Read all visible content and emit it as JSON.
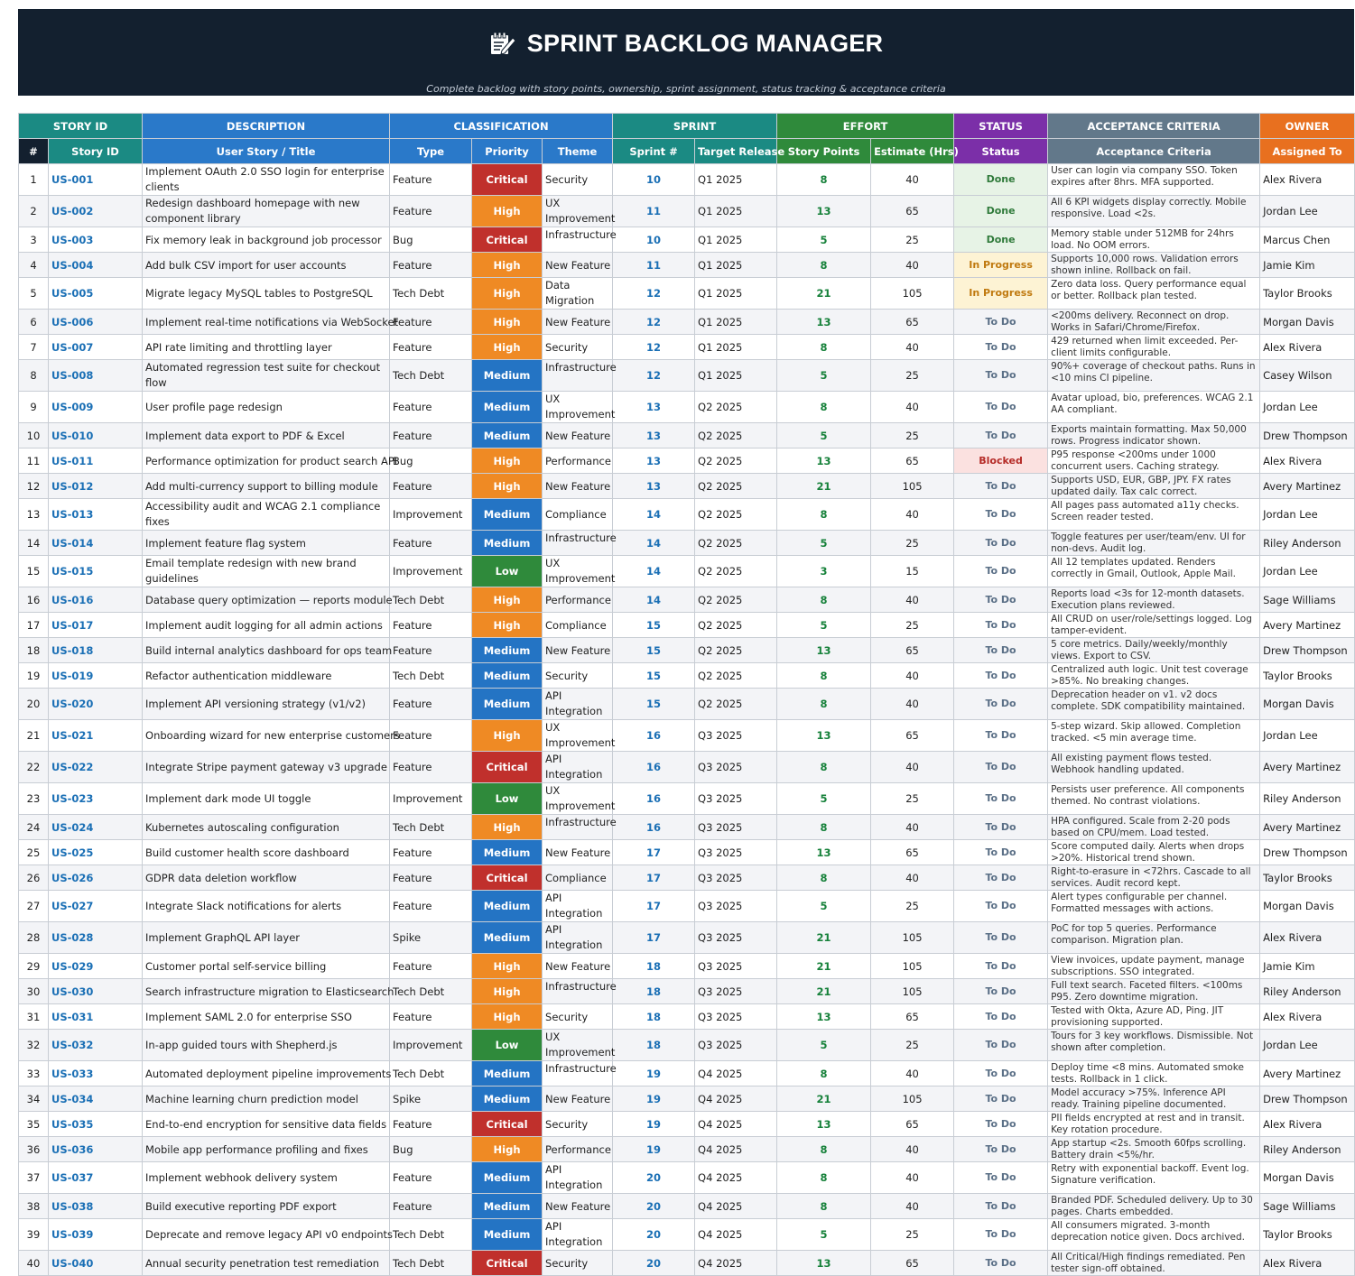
{
  "header": {
    "title": "SPRINT BACKLOG MANAGER",
    "title_icon": "memo-pencil-icon",
    "subtitle": "Complete backlog with story points, ownership, sprint assignment, status tracking & acceptance criteria"
  },
  "column_groups": [
    {
      "label": "STORY ID",
      "color": "#1b8a83"
    },
    {
      "label": "DESCRIPTION",
      "color": "#2a79c9"
    },
    {
      "label": "CLASSIFICATION",
      "color": "#2a79c9"
    },
    {
      "label": "SPRINT",
      "color": "#1b8a83"
    },
    {
      "label": "EFFORT",
      "color": "#2f8a3b"
    },
    {
      "label": "STATUS",
      "color": "#7b2fa8"
    },
    {
      "label": "ACCEPTANCE CRITERIA",
      "color": "#62788a"
    },
    {
      "label": "OWNER",
      "color": "#e8701f"
    }
  ],
  "columns": {
    "num": "#",
    "story_id": "Story ID",
    "title": "User Story / Title",
    "type": "Type",
    "priority": "Priority",
    "theme": "Theme",
    "sprint": "Sprint #",
    "release": "Target Release",
    "points": "Story Points",
    "hours": "Estimate (Hrs)",
    "status": "Status",
    "criteria": "Acceptance Criteria",
    "owner": "Assigned To"
  },
  "colors": {
    "banner": "#13202f",
    "critical": "#c0302c",
    "high": "#ef8a24",
    "medium": "#2474c4",
    "low": "#2f8a3b",
    "id_text": "#1a6fb5",
    "points_text": "#16813a"
  },
  "rows": [
    {
      "num": "1",
      "id": "US-001",
      "title": "Implement OAuth 2.0 SSO login for enterprise clients",
      "type": "Feature",
      "priority": "Critical",
      "theme": "Security",
      "sprint": "10",
      "release": "Q1 2025",
      "points": "8",
      "hours": "40",
      "status": "Done",
      "criteria": "User can login via company SSO. Token expires after 8hrs. MFA supported.",
      "owner": "Alex Rivera"
    },
    {
      "num": "2",
      "id": "US-002",
      "title": "Redesign dashboard homepage with new component library",
      "type": "Feature",
      "priority": "High",
      "theme": "UX Improvement",
      "sprint": "11",
      "release": "Q1 2025",
      "points": "13",
      "hours": "65",
      "status": "Done",
      "criteria": "All 6 KPI widgets display correctly. Mobile responsive. Load <2s.",
      "owner": "Jordan Lee"
    },
    {
      "num": "3",
      "id": "US-003",
      "title": "Fix memory leak in background job processor",
      "type": "Bug",
      "priority": "Critical",
      "theme": "Infrastructure",
      "sprint": "10",
      "release": "Q1 2025",
      "points": "5",
      "hours": "25",
      "status": "Done",
      "criteria": "Memory stable under 512MB for 24hrs load. No OOM errors.",
      "owner": "Marcus Chen"
    },
    {
      "num": "4",
      "id": "US-004",
      "title": "Add bulk CSV import for user accounts",
      "type": "Feature",
      "priority": "High",
      "theme": "New Feature",
      "sprint": "11",
      "release": "Q1 2025",
      "points": "8",
      "hours": "40",
      "status": "In Progress",
      "criteria": "Supports 10,000 rows. Validation errors shown inline. Rollback on fail.",
      "owner": "Jamie Kim"
    },
    {
      "num": "5",
      "id": "US-005",
      "title": "Migrate legacy MySQL tables to PostgreSQL",
      "type": "Tech Debt",
      "priority": "High",
      "theme": "Data Migration",
      "sprint": "12",
      "release": "Q1 2025",
      "points": "21",
      "hours": "105",
      "status": "In Progress",
      "criteria": "Zero data loss. Query performance equal or better. Rollback plan tested.",
      "owner": "Taylor Brooks"
    },
    {
      "num": "6",
      "id": "US-006",
      "title": "Implement real-time notifications via WebSocket",
      "type": "Feature",
      "priority": "High",
      "theme": "New Feature",
      "sprint": "12",
      "release": "Q1 2025",
      "points": "13",
      "hours": "65",
      "status": "To Do",
      "criteria": "<200ms delivery. Reconnect on drop. Works in Safari/Chrome/Firefox.",
      "owner": "Morgan Davis"
    },
    {
      "num": "7",
      "id": "US-007",
      "title": "API rate limiting and throttling layer",
      "type": "Feature",
      "priority": "High",
      "theme": "Security",
      "sprint": "12",
      "release": "Q1 2025",
      "points": "8",
      "hours": "40",
      "status": "To Do",
      "criteria": "429 returned when limit exceeded. Per-client limits configurable.",
      "owner": "Alex Rivera"
    },
    {
      "num": "8",
      "id": "US-008",
      "title": "Automated regression test suite for checkout flow",
      "type": "Tech Debt",
      "priority": "Medium",
      "theme": "Infrastructure",
      "sprint": "12",
      "release": "Q1 2025",
      "points": "5",
      "hours": "25",
      "status": "To Do",
      "criteria": "90%+ coverage of checkout paths. Runs in <10 mins CI pipeline.",
      "owner": "Casey Wilson"
    },
    {
      "num": "9",
      "id": "US-009",
      "title": "User profile page redesign",
      "type": "Feature",
      "priority": "Medium",
      "theme": "UX Improvement",
      "sprint": "13",
      "release": "Q2 2025",
      "points": "8",
      "hours": "40",
      "status": "To Do",
      "criteria": "Avatar upload, bio, preferences. WCAG 2.1 AA compliant.",
      "owner": "Jordan Lee"
    },
    {
      "num": "10",
      "id": "US-010",
      "title": "Implement data export to PDF & Excel",
      "type": "Feature",
      "priority": "Medium",
      "theme": "New Feature",
      "sprint": "13",
      "release": "Q2 2025",
      "points": "5",
      "hours": "25",
      "status": "To Do",
      "criteria": "Exports maintain formatting. Max 50,000 rows. Progress indicator shown.",
      "owner": "Drew Thompson"
    },
    {
      "num": "11",
      "id": "US-011",
      "title": "Performance optimization for product search API",
      "type": "Bug",
      "priority": "High",
      "theme": "Performance",
      "sprint": "13",
      "release": "Q2 2025",
      "points": "13",
      "hours": "65",
      "status": "Blocked",
      "criteria": "P95 response <200ms under 1000 concurrent users. Caching strategy.",
      "owner": "Alex Rivera"
    },
    {
      "num": "12",
      "id": "US-012",
      "title": "Add multi-currency support to billing module",
      "type": "Feature",
      "priority": "High",
      "theme": "New Feature",
      "sprint": "13",
      "release": "Q2 2025",
      "points": "21",
      "hours": "105",
      "status": "To Do",
      "criteria": "Supports USD, EUR, GBP, JPY. FX rates updated daily. Tax calc correct.",
      "owner": "Avery Martinez"
    },
    {
      "num": "13",
      "id": "US-013",
      "title": "Accessibility audit and WCAG 2.1 compliance fixes",
      "type": "Improvement",
      "priority": "Medium",
      "theme": "Compliance",
      "sprint": "14",
      "release": "Q2 2025",
      "points": "8",
      "hours": "40",
      "status": "To Do",
      "criteria": "All pages pass automated a11y checks. Screen reader tested.",
      "owner": "Jordan Lee"
    },
    {
      "num": "14",
      "id": "US-014",
      "title": "Implement feature flag system",
      "type": "Feature",
      "priority": "Medium",
      "theme": "Infrastructure",
      "sprint": "14",
      "release": "Q2 2025",
      "points": "5",
      "hours": "25",
      "status": "To Do",
      "criteria": "Toggle features per user/team/env. UI for non-devs. Audit log.",
      "owner": "Riley Anderson"
    },
    {
      "num": "15",
      "id": "US-015",
      "title": "Email template redesign with new brand guidelines",
      "type": "Improvement",
      "priority": "Low",
      "theme": "UX Improvement",
      "sprint": "14",
      "release": "Q2 2025",
      "points": "3",
      "hours": "15",
      "status": "To Do",
      "criteria": "All 12 templates updated. Renders correctly in Gmail, Outlook, Apple Mail.",
      "owner": "Jordan Lee"
    },
    {
      "num": "16",
      "id": "US-016",
      "title": "Database query optimization — reports module",
      "type": "Tech Debt",
      "priority": "High",
      "theme": "Performance",
      "sprint": "14",
      "release": "Q2 2025",
      "points": "8",
      "hours": "40",
      "status": "To Do",
      "criteria": "Reports load <3s for 12-month datasets. Execution plans reviewed.",
      "owner": "Sage Williams"
    },
    {
      "num": "17",
      "id": "US-017",
      "title": "Implement audit logging for all admin actions",
      "type": "Feature",
      "priority": "High",
      "theme": "Compliance",
      "sprint": "15",
      "release": "Q2 2025",
      "points": "5",
      "hours": "25",
      "status": "To Do",
      "criteria": "All CRUD on user/role/settings logged. Log tamper-evident.",
      "owner": "Avery Martinez"
    },
    {
      "num": "18",
      "id": "US-018",
      "title": "Build internal analytics dashboard for ops team",
      "type": "Feature",
      "priority": "Medium",
      "theme": "New Feature",
      "sprint": "15",
      "release": "Q2 2025",
      "points": "13",
      "hours": "65",
      "status": "To Do",
      "criteria": "5 core metrics. Daily/weekly/monthly views. Export to CSV.",
      "owner": "Drew Thompson"
    },
    {
      "num": "19",
      "id": "US-019",
      "title": "Refactor authentication middleware",
      "type": "Tech Debt",
      "priority": "Medium",
      "theme": "Security",
      "sprint": "15",
      "release": "Q2 2025",
      "points": "8",
      "hours": "40",
      "status": "To Do",
      "criteria": "Centralized auth logic. Unit test coverage >85%. No breaking changes.",
      "owner": "Taylor Brooks"
    },
    {
      "num": "20",
      "id": "US-020",
      "title": "Implement API versioning strategy (v1/v2)",
      "type": "Feature",
      "priority": "Medium",
      "theme": "API Integration",
      "sprint": "15",
      "release": "Q2 2025",
      "points": "8",
      "hours": "40",
      "status": "To Do",
      "criteria": "Deprecation header on v1. v2 docs complete. SDK compatibility maintained.",
      "owner": "Morgan Davis"
    },
    {
      "num": "21",
      "id": "US-021",
      "title": "Onboarding wizard for new enterprise customers",
      "type": "Feature",
      "priority": "High",
      "theme": "UX Improvement",
      "sprint": "16",
      "release": "Q3 2025",
      "points": "13",
      "hours": "65",
      "status": "To Do",
      "criteria": "5-step wizard. Skip allowed. Completion tracked. <5 min average time.",
      "owner": "Jordan Lee"
    },
    {
      "num": "22",
      "id": "US-022",
      "title": "Integrate Stripe payment gateway v3 upgrade",
      "type": "Feature",
      "priority": "Critical",
      "theme": "API Integration",
      "sprint": "16",
      "release": "Q3 2025",
      "points": "8",
      "hours": "40",
      "status": "To Do",
      "criteria": "All existing payment flows tested. Webhook handling updated.",
      "owner": "Avery Martinez"
    },
    {
      "num": "23",
      "id": "US-023",
      "title": "Implement dark mode UI toggle",
      "type": "Improvement",
      "priority": "Low",
      "theme": "UX Improvement",
      "sprint": "16",
      "release": "Q3 2025",
      "points": "5",
      "hours": "25",
      "status": "To Do",
      "criteria": "Persists user preference. All components themed. No contrast violations.",
      "owner": "Riley Anderson"
    },
    {
      "num": "24",
      "id": "US-024",
      "title": "Kubernetes autoscaling configuration",
      "type": "Tech Debt",
      "priority": "High",
      "theme": "Infrastructure",
      "sprint": "16",
      "release": "Q3 2025",
      "points": "8",
      "hours": "40",
      "status": "To Do",
      "criteria": "HPA configured. Scale from 2-20 pods based on CPU/mem. Load tested.",
      "owner": "Avery Martinez"
    },
    {
      "num": "25",
      "id": "US-025",
      "title": "Build customer health score dashboard",
      "type": "Feature",
      "priority": "Medium",
      "theme": "New Feature",
      "sprint": "17",
      "release": "Q3 2025",
      "points": "13",
      "hours": "65",
      "status": "To Do",
      "criteria": "Score computed daily. Alerts when drops >20%. Historical trend shown.",
      "owner": "Drew Thompson"
    },
    {
      "num": "26",
      "id": "US-026",
      "title": "GDPR data deletion workflow",
      "type": "Feature",
      "priority": "Critical",
      "theme": "Compliance",
      "sprint": "17",
      "release": "Q3 2025",
      "points": "8",
      "hours": "40",
      "status": "To Do",
      "criteria": "Right-to-erasure in <72hrs. Cascade to all services. Audit record kept.",
      "owner": "Taylor Brooks"
    },
    {
      "num": "27",
      "id": "US-027",
      "title": "Integrate Slack notifications for alerts",
      "type": "Feature",
      "priority": "Medium",
      "theme": "API Integration",
      "sprint": "17",
      "release": "Q3 2025",
      "points": "5",
      "hours": "25",
      "status": "To Do",
      "criteria": "Alert types configurable per channel. Formatted messages with actions.",
      "owner": "Morgan Davis"
    },
    {
      "num": "28",
      "id": "US-028",
      "title": "Implement GraphQL API layer",
      "type": "Spike",
      "priority": "Medium",
      "theme": "API Integration",
      "sprint": "17",
      "release": "Q3 2025",
      "points": "21",
      "hours": "105",
      "status": "To Do",
      "criteria": "PoC for top 5 queries. Performance comparison. Migration plan.",
      "owner": "Alex Rivera"
    },
    {
      "num": "29",
      "id": "US-029",
      "title": "Customer portal self-service billing",
      "type": "Feature",
      "priority": "High",
      "theme": "New Feature",
      "sprint": "18",
      "release": "Q3 2025",
      "points": "21",
      "hours": "105",
      "status": "To Do",
      "criteria": "View invoices, update payment, manage subscriptions. SSO integrated.",
      "owner": "Jamie Kim"
    },
    {
      "num": "30",
      "id": "US-030",
      "title": "Search infrastructure migration to Elasticsearch",
      "type": "Tech Debt",
      "priority": "High",
      "theme": "Infrastructure",
      "sprint": "18",
      "release": "Q3 2025",
      "points": "21",
      "hours": "105",
      "status": "To Do",
      "criteria": "Full text search. Faceted filters. <100ms P95. Zero downtime migration.",
      "owner": "Riley Anderson"
    },
    {
      "num": "31",
      "id": "US-031",
      "title": "Implement SAML 2.0 for enterprise SSO",
      "type": "Feature",
      "priority": "High",
      "theme": "Security",
      "sprint": "18",
      "release": "Q3 2025",
      "points": "13",
      "hours": "65",
      "status": "To Do",
      "criteria": "Tested with Okta, Azure AD, Ping. JIT provisioning supported.",
      "owner": "Alex Rivera"
    },
    {
      "num": "32",
      "id": "US-032",
      "title": "In-app guided tours with Shepherd.js",
      "type": "Improvement",
      "priority": "Low",
      "theme": "UX Improvement",
      "sprint": "18",
      "release": "Q3 2025",
      "points": "5",
      "hours": "25",
      "status": "To Do",
      "criteria": "Tours for 3 key workflows. Dismissible. Not shown after completion.",
      "owner": "Jordan Lee"
    },
    {
      "num": "33",
      "id": "US-033",
      "title": "Automated deployment pipeline improvements",
      "type": "Tech Debt",
      "priority": "Medium",
      "theme": "Infrastructure",
      "sprint": "19",
      "release": "Q4 2025",
      "points": "8",
      "hours": "40",
      "status": "To Do",
      "criteria": "Deploy time <8 mins. Automated smoke tests. Rollback in 1 click.",
      "owner": "Avery Martinez"
    },
    {
      "num": "34",
      "id": "US-034",
      "title": "Machine learning churn prediction model",
      "type": "Spike",
      "priority": "Medium",
      "theme": "New Feature",
      "sprint": "19",
      "release": "Q4 2025",
      "points": "21",
      "hours": "105",
      "status": "To Do",
      "criteria": "Model accuracy >75%. Inference API ready. Training pipeline documented.",
      "owner": "Drew Thompson"
    },
    {
      "num": "35",
      "id": "US-035",
      "title": "End-to-end encryption for sensitive data fields",
      "type": "Feature",
      "priority": "Critical",
      "theme": "Security",
      "sprint": "19",
      "release": "Q4 2025",
      "points": "13",
      "hours": "65",
      "status": "To Do",
      "criteria": "PII fields encrypted at rest and in transit. Key rotation procedure.",
      "owner": "Alex Rivera"
    },
    {
      "num": "36",
      "id": "US-036",
      "title": "Mobile app performance profiling and fixes",
      "type": "Bug",
      "priority": "High",
      "theme": "Performance",
      "sprint": "19",
      "release": "Q4 2025",
      "points": "8",
      "hours": "40",
      "status": "To Do",
      "criteria": "App startup <2s. Smooth 60fps scrolling. Battery drain <5%/hr.",
      "owner": "Riley Anderson"
    },
    {
      "num": "37",
      "id": "US-037",
      "title": "Implement webhook delivery system",
      "type": "Feature",
      "priority": "Medium",
      "theme": "API Integration",
      "sprint": "20",
      "release": "Q4 2025",
      "points": "8",
      "hours": "40",
      "status": "To Do",
      "criteria": "Retry with exponential backoff. Event log. Signature verification.",
      "owner": "Morgan Davis"
    },
    {
      "num": "38",
      "id": "US-038",
      "title": "Build executive reporting PDF export",
      "type": "Feature",
      "priority": "Medium",
      "theme": "New Feature",
      "sprint": "20",
      "release": "Q4 2025",
      "points": "8",
      "hours": "40",
      "status": "To Do",
      "criteria": "Branded PDF. Scheduled delivery. Up to 30 pages. Charts embedded.",
      "owner": "Sage Williams"
    },
    {
      "num": "39",
      "id": "US-039",
      "title": "Deprecate and remove legacy API v0 endpoints",
      "type": "Tech Debt",
      "priority": "Medium",
      "theme": "API Integration",
      "sprint": "20",
      "release": "Q4 2025",
      "points": "5",
      "hours": "25",
      "status": "To Do",
      "criteria": "All consumers migrated. 3-month deprecation notice given. Docs archived.",
      "owner": "Taylor Brooks"
    },
    {
      "num": "40",
      "id": "US-040",
      "title": "Annual security penetration test remediation",
      "type": "Tech Debt",
      "priority": "Critical",
      "theme": "Security",
      "sprint": "20",
      "release": "Q4 2025",
      "points": "13",
      "hours": "65",
      "status": "To Do",
      "criteria": "All Critical/High findings remediated. Pen tester sign-off obtained.",
      "owner": "Alex Rivera"
    }
  ]
}
